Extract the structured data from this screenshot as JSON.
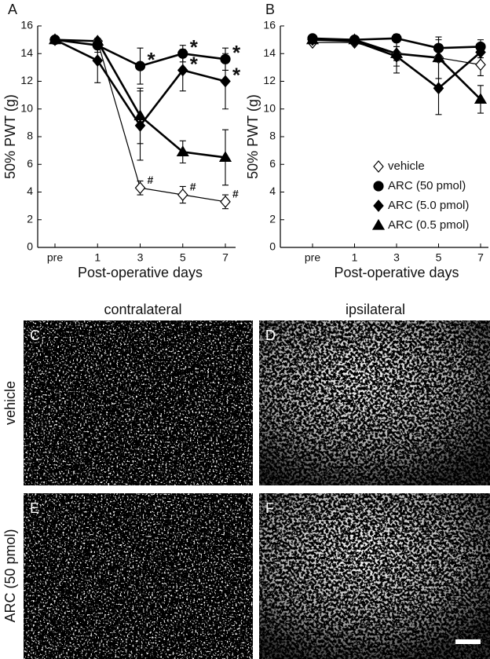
{
  "chart_data": [
    {
      "type": "line",
      "panel_label": "A",
      "ylabel": "50% PWT (g)",
      "xlabel": "Post-operative days",
      "categories": [
        "pre",
        "1",
        "3",
        "5",
        "7"
      ],
      "ylim": [
        0,
        16
      ],
      "yticks": [
        0,
        2,
        4,
        6,
        8,
        10,
        12,
        14,
        16
      ],
      "series": [
        {
          "marker": "diamond-open",
          "color": "#000000",
          "values": [
            15,
            14.9,
            4.3,
            3.8,
            3.3
          ],
          "errors": [
            null,
            null,
            0.5,
            0.6,
            0.5
          ],
          "flags": [
            null,
            null,
            "#",
            "#",
            "#"
          ]
        },
        {
          "marker": "circle",
          "color": "#000000",
          "values": [
            15,
            14.6,
            13.1,
            14.0,
            13.6
          ],
          "errors": [
            null,
            0.5,
            1.3,
            0.6,
            0.8
          ],
          "flags": [
            null,
            null,
            "*",
            "*",
            "*"
          ]
        },
        {
          "marker": "diamond",
          "color": "#000000",
          "values": [
            15,
            13.5,
            8.8,
            12.8,
            12.0
          ],
          "errors": [
            null,
            1.6,
            2.5,
            1.5,
            2.0
          ],
          "flags": [
            null,
            null,
            null,
            "*",
            "*"
          ]
        },
        {
          "marker": "triangle",
          "color": "#000000",
          "values": [
            15,
            14.9,
            9.5,
            6.9,
            6.5
          ],
          "errors": [
            null,
            null,
            2.0,
            0.8,
            2.0
          ],
          "flags": [
            null,
            null,
            null,
            null,
            null
          ]
        }
      ]
    },
    {
      "type": "line",
      "panel_label": "B",
      "ylabel": "50% PWT (g)",
      "xlabel": "Post-operative days",
      "categories": [
        "pre",
        "1",
        "3",
        "5",
        "7"
      ],
      "ylim": [
        0,
        16
      ],
      "yticks": [
        0,
        2,
        4,
        6,
        8,
        10,
        12,
        14,
        16
      ],
      "legend": "lower-right",
      "series": [
        {
          "name": "vehicle",
          "marker": "diamond-open",
          "color": "#000000",
          "values": [
            14.8,
            14.8,
            14.0,
            13.7,
            13.2
          ],
          "errors": [
            null,
            null,
            0.5,
            null,
            0.8
          ]
        },
        {
          "name": "ARC (50 pmol)",
          "marker": "circle",
          "color": "#000000",
          "values": [
            15.1,
            15.0,
            15.1,
            14.4,
            14.5
          ],
          "errors": [
            null,
            null,
            null,
            0.6,
            0.5
          ]
        },
        {
          "name": "ARC (5.0 pmol)",
          "marker": "diamond",
          "color": "#000000",
          "values": [
            15,
            14.9,
            13.8,
            11.5,
            14.1
          ],
          "errors": [
            null,
            null,
            0.7,
            1.9,
            0.4
          ]
        },
        {
          "name": "ARC (0.5 pmol)",
          "marker": "triangle",
          "color": "#000000",
          "values": [
            15,
            15.0,
            14.0,
            13.7,
            10.7
          ],
          "errors": [
            null,
            null,
            1.4,
            1.5,
            1.0
          ]
        }
      ]
    }
  ],
  "micrographs": {
    "columns": [
      "contralateral",
      "ipsilateral"
    ],
    "rows": [
      "vehicle",
      "ARC (50 pmol)"
    ],
    "panels": [
      "C",
      "D",
      "E",
      "F"
    ]
  }
}
